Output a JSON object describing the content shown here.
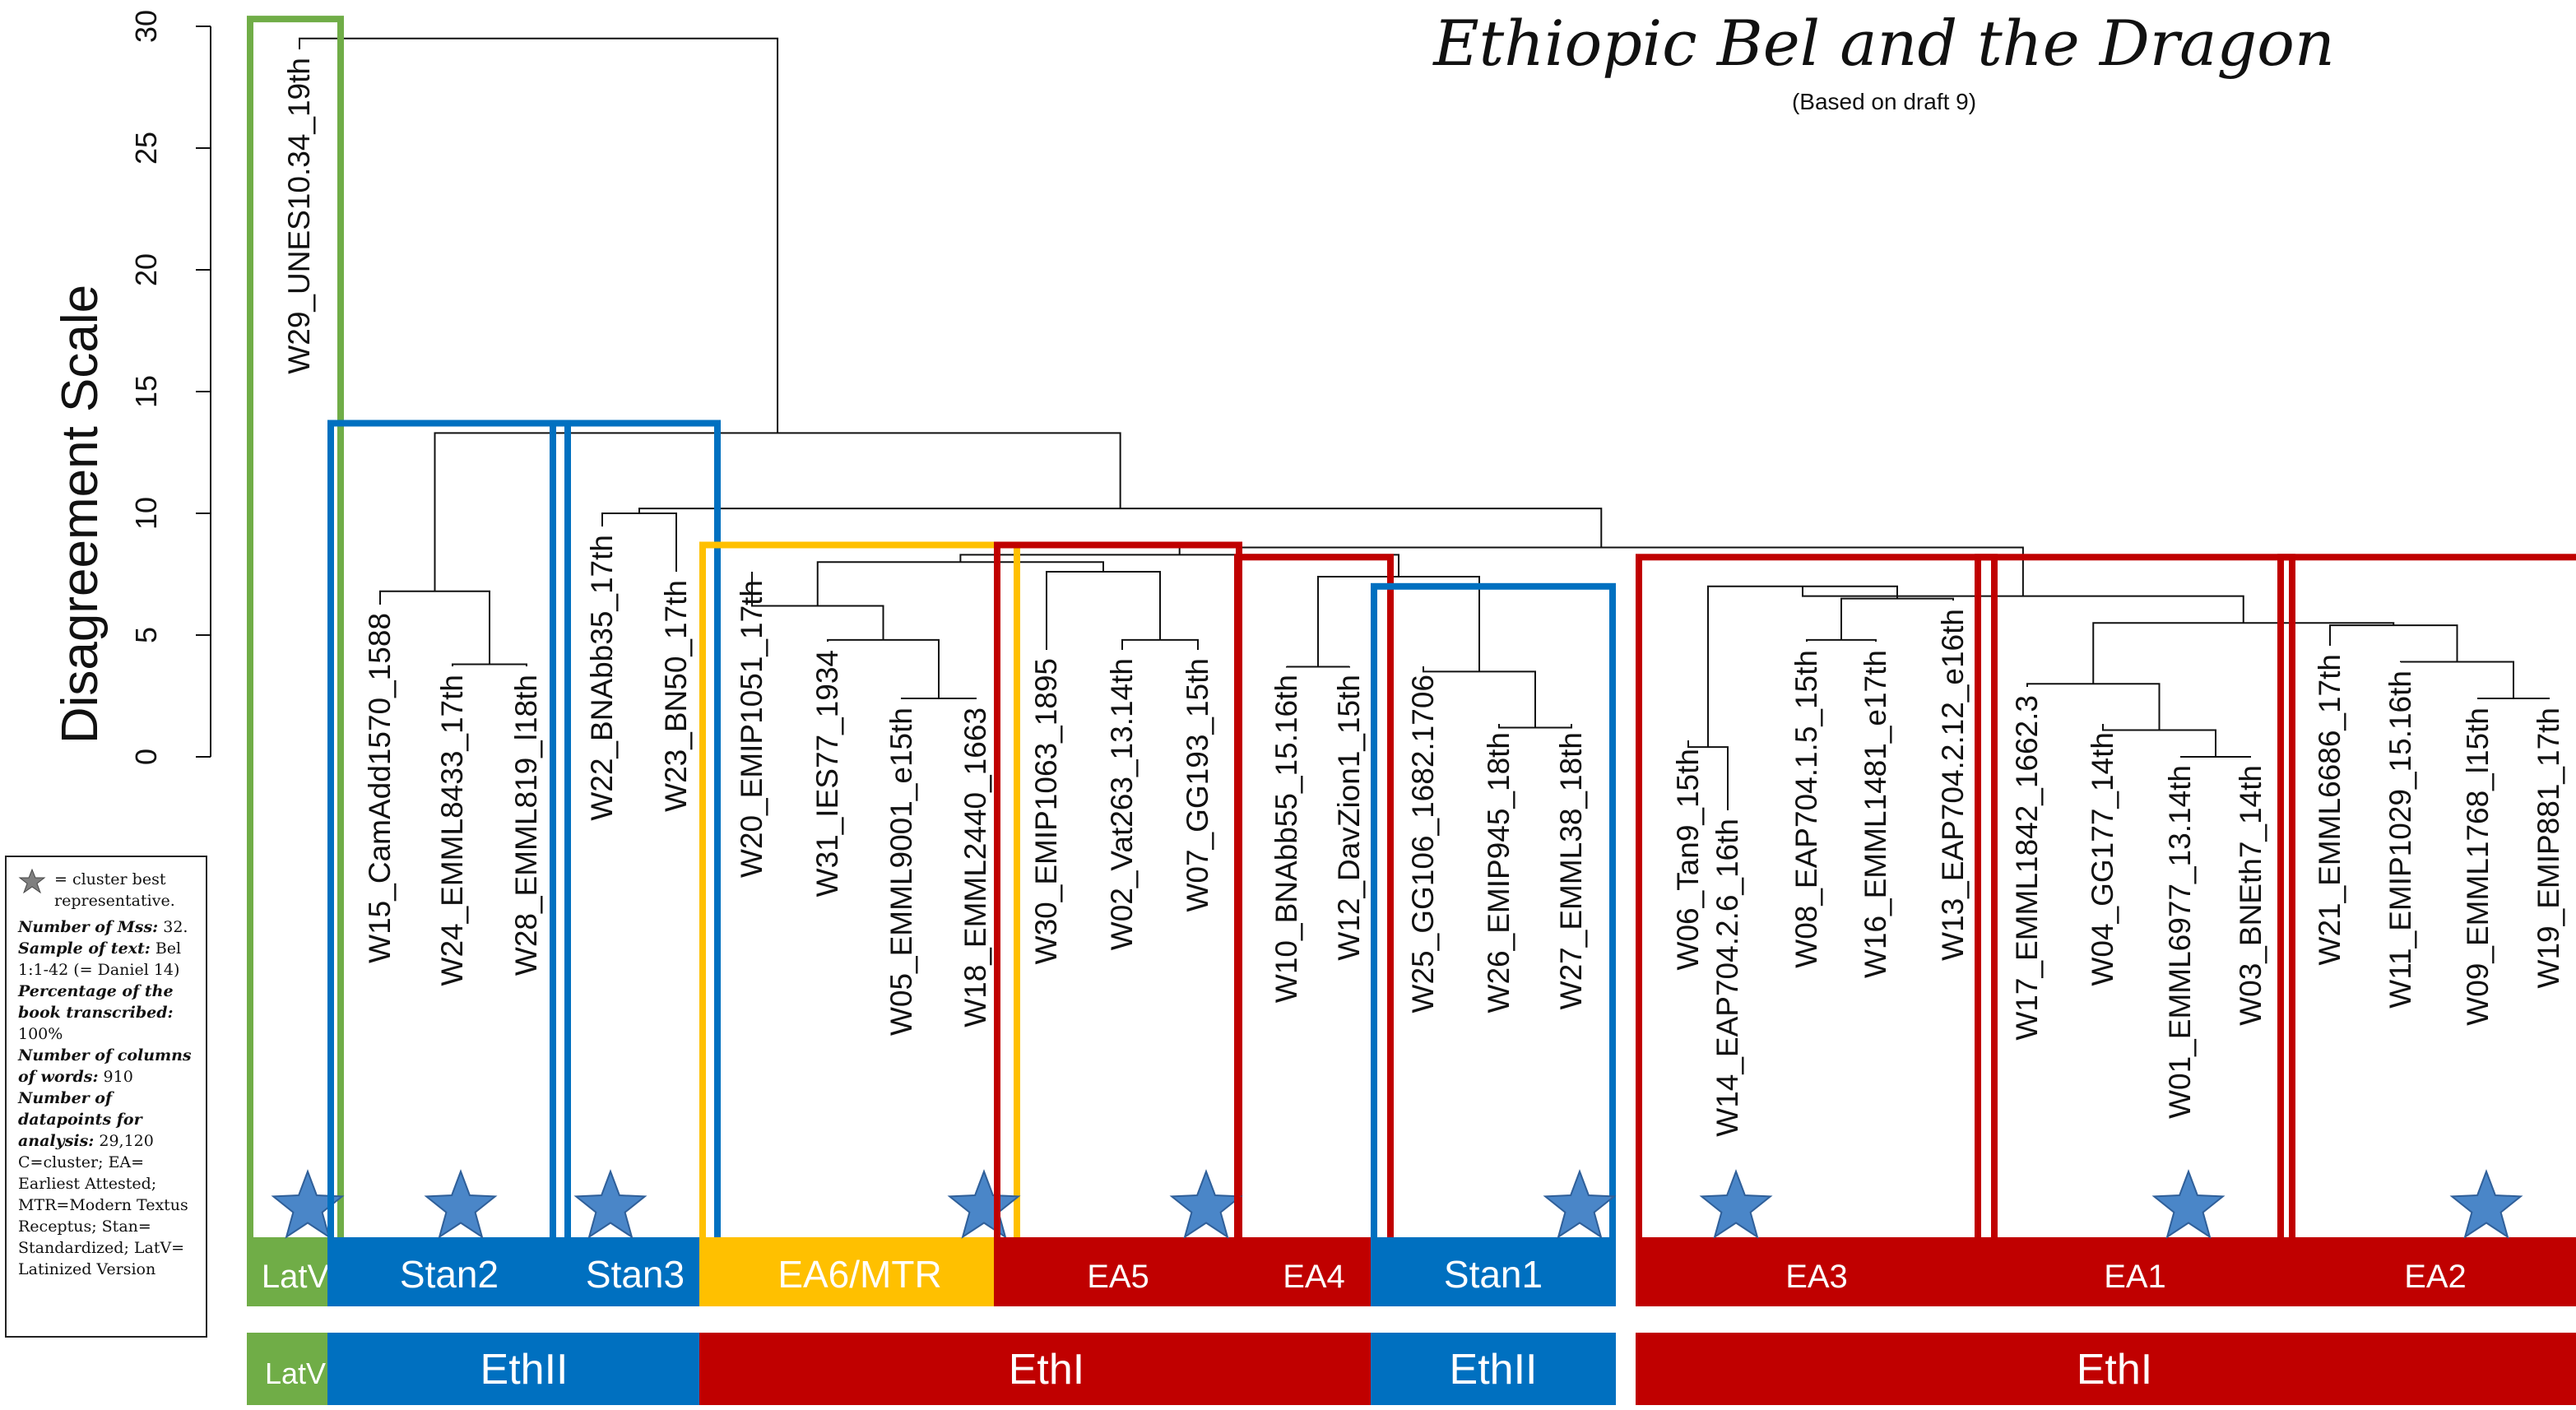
{
  "title": "Ethiopic Bel and the Dragon",
  "subtitle": "(Based on draft 9)",
  "axis": {
    "label": "Disagreement Scale",
    "ticks": [
      "0",
      "5",
      "10",
      "15",
      "20",
      "25",
      "30"
    ],
    "range": [
      0,
      30
    ]
  },
  "leaves": [
    "W29_UNES10.34_19th",
    "W15_CamAdd1570_1588",
    "W24_EMML8433_17th",
    "W28_EMML819_l18th",
    "W22_BNAbb35_17th",
    "W23_BN50_17th",
    "W20_EMIP1051_17th",
    "W31_IES77_1934",
    "W05_EMML9001_e15th",
    "W18_EMML2440_1663",
    "W30_EMIP1063_1895",
    "W02_Vat263_13.14th",
    "W07_GG193_15th",
    "W10_BNAbb55_15.16th",
    "W12_DavZion1_15th",
    "W25_GG106_1682.1706",
    "W26_EMIP945_18th",
    "W27_EMML38_18th",
    "W06_Tan9_15th",
    "W14_EAP704.2.6_16th",
    "W08_EAP704.1.5_15th",
    "W16_EMML1481_e17th",
    "W13_EAP704.2.12_e16th",
    "W17_EMML1842_1662.3",
    "W04_GG177_14th",
    "W01_EMML6977_13.14th",
    "W03_BNEth7_14th",
    "W21_EMML6686_17th",
    "W11_EMIP1029_15.16th",
    "W09_EMML1768_l15th",
    "W19_EMIP881_17th"
  ],
  "merges": [
    {
      "left": "L2",
      "right": "L3",
      "height": 3.8
    },
    {
      "left": "L1",
      "right": "N0",
      "height": 6.8
    },
    {
      "left": "L4",
      "right": "L5",
      "height": 10.0
    },
    {
      "left": "L8",
      "right": "L9",
      "height": 2.4
    },
    {
      "left": "L7",
      "right": "N3",
      "height": 4.8
    },
    {
      "left": "L6",
      "right": "N4",
      "height": 6.2
    },
    {
      "left": "L11",
      "right": "L12",
      "height": 4.8
    },
    {
      "left": "L10",
      "right": "N6",
      "height": 7.6
    },
    {
      "left": "N5",
      "right": "N7",
      "height": 8.0
    },
    {
      "left": "L13",
      "right": "L14",
      "height": 3.7
    },
    {
      "left": "L16",
      "right": "L17",
      "height": 1.2
    },
    {
      "left": "L15",
      "right": "N10",
      "height": 3.5
    },
    {
      "left": "N9",
      "right": "N11",
      "height": 7.4
    },
    {
      "left": "N8",
      "right": "N12",
      "height": 8.3
    },
    {
      "left": "L20",
      "right": "L21",
      "height": 4.8
    },
    {
      "left": "N14",
      "right": "L22",
      "height": 6.5
    },
    {
      "left": "L18",
      "right": "L19",
      "height": 0.4
    },
    {
      "left": "N16",
      "right": "N15",
      "height": 7.0
    },
    {
      "left": "L25",
      "right": "L26",
      "height": 0.0
    },
    {
      "left": "L24",
      "right": "N18",
      "height": 1.1
    },
    {
      "left": "L23",
      "right": "N19",
      "height": 3.0
    },
    {
      "left": "L29",
      "right": "L30",
      "height": 2.4
    },
    {
      "left": "L28",
      "right": "N21",
      "height": 3.9
    },
    {
      "left": "L27",
      "right": "N22",
      "height": 5.4
    },
    {
      "left": "N20",
      "right": "N23",
      "height": 5.5
    },
    {
      "left": "N17",
      "right": "N24",
      "height": 6.6
    },
    {
      "left": "N13",
      "right": "N25",
      "height": 8.6
    },
    {
      "left": "N2",
      "right": "N26",
      "height": 10.2
    },
    {
      "left": "N1",
      "right": "N27",
      "height": 13.3
    },
    {
      "left": "L0",
      "right": "N28",
      "height": 29.5
    }
  ],
  "clusters": [
    {
      "label": "LatV",
      "color": "#70ad47",
      "first": 0,
      "last": 0,
      "top_height": 30.3,
      "star_leaf": 0
    },
    {
      "label": "Stan2",
      "color": "#0070c0",
      "first": 1,
      "last": 3,
      "top_height": 13.7,
      "star_leaf": 2
    },
    {
      "label": "Stan3",
      "color": "#0070c0",
      "first": 4,
      "last": 5,
      "top_height": 13.7,
      "star_leaf": 4
    },
    {
      "label": "EA6/MTR",
      "color": "#ffc000",
      "first": 6,
      "last": 9,
      "top_height": 8.7,
      "star_leaf": 9
    },
    {
      "label": "EA5",
      "color": "#c00000",
      "first": 10,
      "last": 12,
      "top_height": 8.7,
      "star_leaf": 12
    },
    {
      "label": "EA4",
      "color": "#c00000",
      "first": 13,
      "last": 14,
      "top_height": 8.2,
      "star_leaf": null
    },
    {
      "label": "Stan1",
      "color": "#0070c0",
      "first": 15,
      "last": 17,
      "top_height": 7.0,
      "star_leaf": 17
    },
    {
      "label": "EA3",
      "color": "#c00000",
      "first": 18,
      "last": 22,
      "top_height": 8.2,
      "star_leaf": 19
    },
    {
      "label": "EA1",
      "color": "#c00000",
      "first": 23,
      "last": 26,
      "top_height": 8.2,
      "star_leaf": 25
    },
    {
      "label": "EA2",
      "color": "#c00000",
      "first": 27,
      "last": 30,
      "top_height": 8.2,
      "star_leaf": 29
    }
  ],
  "groups": [
    {
      "label": "LatV",
      "color": "#70ad47",
      "first": 0,
      "last": 0
    },
    {
      "label": "EthII",
      "color": "#0070c0",
      "first": 1,
      "last": 5
    },
    {
      "label": "EthI",
      "color": "#c00000",
      "first": 6,
      "last": 14
    },
    {
      "label": "EthII",
      "color": "#0070c0",
      "first": 15,
      "last": 17
    },
    {
      "label": "EthI",
      "color": "#c00000",
      "first": 18,
      "last": 30
    }
  ],
  "legend": {
    "star_text": "= cluster best representative.",
    "lines": [
      {
        "italic": "Number of Mss:",
        "text": " 32."
      },
      {
        "italic": "Sample of text:",
        "text": " Bel 1:1-42 (= Daniel 14)"
      },
      {
        "italic": "Percentage of the book transcribed:",
        "text": " 100%"
      },
      {
        "italic": "Number of columns of words:",
        "text": " 910"
      },
      {
        "italic": "Number of datapoints for analysis:",
        "text": " 29,120"
      },
      {
        "italic": "",
        "text": "C=cluster; EA= Earliest Attested; MTR=Modern Textus Receptus; Stan= Standardized; LatV= Latinized Version"
      }
    ]
  }
}
